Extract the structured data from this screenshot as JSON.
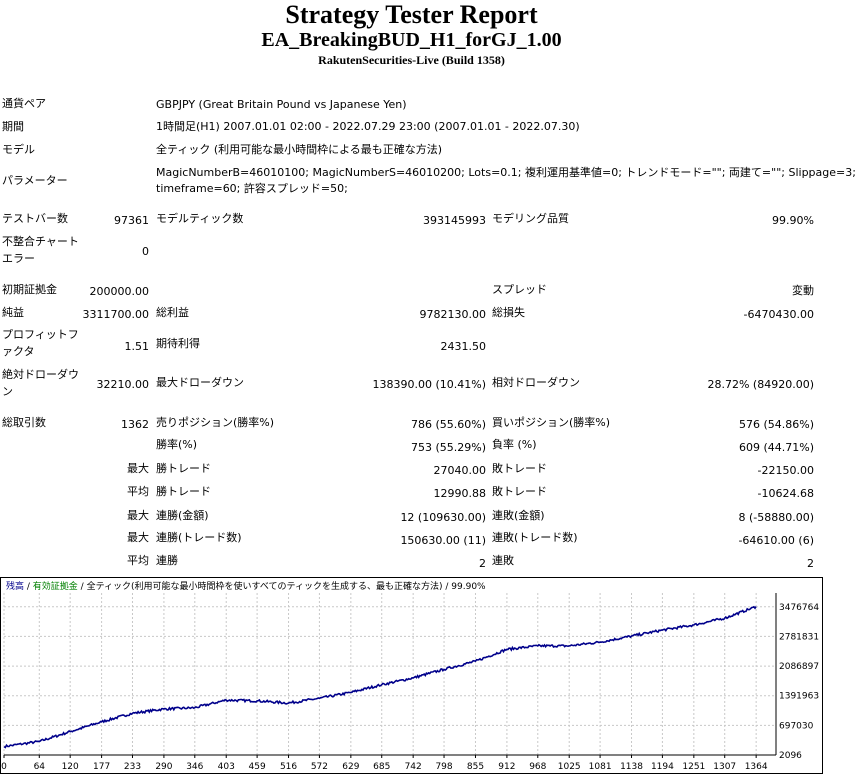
{
  "header": {
    "title": "Strategy Tester Report",
    "subtitle": "EA_BreakingBUD_H1_forGJ_1.00",
    "build": "RakutenSecurities-Live (Build 1358)"
  },
  "info": {
    "symbol_label": "通貨ペア",
    "symbol_value": "GBPJPY (Great Britain Pound vs Japanese Yen)",
    "period_label": "期間",
    "period_value": "1時間足(H1) 2007.01.01 02:00 - 2022.07.29 23:00 (2007.01.01 - 2022.07.30)",
    "model_label": "モデル",
    "model_value": "全ティック (利用可能な最小時間枠による最も正確な方法)",
    "params_label": "パラメーター",
    "params_line1": "MagicNumberB=46010100; MagicNumberS=46010200; Lots=0.1; 複利運用基準値=0; トレンドモード=\"\"; 両建て=\"\"; Slippage=3;",
    "params_line2": "timeframe=60; 許容スプレッド=50;"
  },
  "stats": {
    "bars_label": "テストバー数",
    "bars_value": "97361",
    "ticks_label": "モデルティック数",
    "ticks_value": "393145993",
    "quality_label": "モデリング品質",
    "quality_value": "99.90%",
    "mismatch_label1": "不整合チャート",
    "mismatch_label2": "エラー",
    "mismatch_value": "0",
    "deposit_label": "初期証拠金",
    "deposit_value": "200000.00",
    "spread_label": "スプレッド",
    "spread_value": "変動",
    "net_label": "純益",
    "net_value": "3311700.00",
    "gross_profit_label": "総利益",
    "gross_profit_value": "9782130.00",
    "gross_loss_label": "総損失",
    "gross_loss_value": "-6470430.00",
    "pf_label1": "プロフィットフ",
    "pf_label2": "ァクタ",
    "pf_value": "1.51",
    "expected_label": "期待利得",
    "expected_value": "2431.50",
    "abs_dd_label1": "絶対ドローダウ",
    "abs_dd_label2": "ン",
    "abs_dd_value": "32210.00",
    "max_dd_label": "最大ドローダウン",
    "max_dd_value": "138390.00 (10.41%)",
    "rel_dd_label": "相対ドローダウン",
    "rel_dd_value": "28.72% (84920.00)",
    "trades_label": "総取引数",
    "trades_value": "1362",
    "short_label": "売りポジション(勝率%)",
    "short_value": "786 (55.60%)",
    "long_label": "買いポジション(勝率%)",
    "long_value": "576 (54.86%)",
    "winrate_label": "勝率(%)",
    "winrate_value": "753 (55.29%)",
    "lossrate_label": "負率 (%)",
    "lossrate_value": "609 (44.71%)",
    "max1_label": "最大",
    "max_win_label": "勝トレード",
    "max_win_value": "27040.00",
    "max_loss_label": "敗トレード",
    "max_loss_value": "-22150.00",
    "avg1_label": "平均",
    "avg_win_label": "勝トレード",
    "avg_win_value": "12990.88",
    "avg_loss_label": "敗トレード",
    "avg_loss_value": "-10624.68",
    "max2_label": "最大",
    "cons_win_label": "連勝(金額)",
    "cons_win_value": "12 (109630.00)",
    "cons_loss_label": "連敗(金額)",
    "cons_loss_value": "8 (-58880.00)",
    "max3_label": "最大",
    "cons_win_t_label": "連勝(トレード数)",
    "cons_win_t_value": "150630.00 (11)",
    "cons_loss_t_label": "連敗(トレード数)",
    "cons_loss_t_value": "-64610.00 (6)",
    "avg2_label": "平均",
    "avg_cons_win_label": "連勝",
    "avg_cons_win_value": "2",
    "avg_cons_loss_label": "連敗",
    "avg_cons_loss_value": "2"
  },
  "chart_legend": {
    "balance": "残高",
    "sep1": " / ",
    "equity": "有効証拠金",
    "sep2": " / ",
    "model": "全ティック(利用可能な最小時間枠を使いすべてのティックを生成する、最も正確な方法)",
    "quality": " / 99.90%"
  },
  "colors": {
    "balance": "#00008b",
    "equity": "#008000",
    "grid": "#c8c8c8"
  },
  "chart_data": {
    "type": "line",
    "xlabel": "",
    "ylabel": "",
    "x_ticks": [
      0,
      64,
      120,
      177,
      233,
      290,
      346,
      403,
      459,
      516,
      572,
      629,
      685,
      742,
      798,
      855,
      912,
      968,
      1025,
      1081,
      1138,
      1194,
      1251,
      1307,
      1364
    ],
    "y_ticks": [
      2096,
      697030,
      1391963,
      2086897,
      2781831,
      3476764
    ],
    "xlim": [
      0,
      1400
    ],
    "ylim": [
      2096,
      3800000
    ],
    "series": [
      {
        "name": "残高",
        "x": [
          0,
          64,
          120,
          177,
          233,
          290,
          346,
          403,
          459,
          516,
          572,
          629,
          685,
          742,
          798,
          855,
          912,
          968,
          1025,
          1081,
          1138,
          1194,
          1251,
          1307,
          1364
        ],
        "y": [
          200000,
          320000,
          550000,
          780000,
          980000,
          1080000,
          1110000,
          1290000,
          1270000,
          1220000,
          1330000,
          1470000,
          1650000,
          1810000,
          2010000,
          2200000,
          2480000,
          2560000,
          2560000,
          2650000,
          2790000,
          2930000,
          3050000,
          3210000,
          3480000
        ]
      }
    ]
  }
}
